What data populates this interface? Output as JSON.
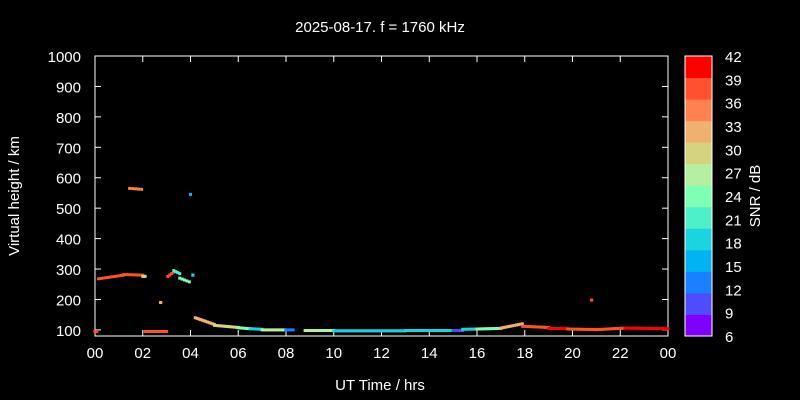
{
  "chart_data": {
    "type": "scatter",
    "title": "2025-08-17. f = 1760 kHz",
    "xlabel": "UT Time / hrs",
    "ylabel": "Virtual height / km",
    "xlim": [
      0,
      24
    ],
    "ylim": [
      80,
      1000
    ],
    "x_ticks": [
      "00",
      "02",
      "04",
      "06",
      "08",
      "10",
      "12",
      "14",
      "16",
      "18",
      "20",
      "22",
      "00"
    ],
    "y_ticks": [
      "100",
      "200",
      "300",
      "400",
      "500",
      "600",
      "700",
      "800",
      "900",
      "1000"
    ],
    "grid": false,
    "colorbar": {
      "label": "SNR / dB",
      "min": 6,
      "max": 42,
      "ticks": [
        "42",
        "39",
        "36",
        "33",
        "30",
        "27",
        "24",
        "21",
        "18",
        "15",
        "12",
        "9",
        "6"
      ],
      "colors": [
        "#8000ff",
        "#4d4dff",
        "#1a80ff",
        "#00b4f0",
        "#1ad4e0",
        "#4df0c8",
        "#80ffb4",
        "#b4f0a0",
        "#d4d480",
        "#f0b070",
        "#ff8050",
        "#ff5030",
        "#ff0000"
      ]
    },
    "series": [
      {
        "segments": [
          {
            "x0": 0.0,
            "x1": 0.08,
            "y0": 95,
            "y1": 95,
            "snr": 40,
            "step": 0.08
          },
          {
            "x0": 0.15,
            "x1": 1.2,
            "y0": 268,
            "y1": 280,
            "snr": 38,
            "step": 0.1
          },
          {
            "x0": 1.2,
            "x1": 2.0,
            "y0": 282,
            "y1": 280,
            "snr": 40,
            "step": 0.1
          },
          {
            "x0": 2.0,
            "x1": 2.1,
            "y0": 276,
            "y1": 276,
            "snr": 30,
            "step": 0.05
          },
          {
            "x0": 1.45,
            "x1": 1.95,
            "y0": 565,
            "y1": 562,
            "snr": 36,
            "step": 0.12
          },
          {
            "x0": 2.1,
            "x1": 3.0,
            "y0": 95,
            "y1": 95,
            "snr": 40,
            "step": 0.1
          },
          {
            "x0": 2.75,
            "x1": 2.75,
            "y0": 190,
            "y1": 190,
            "snr": 33,
            "step": 0.1
          },
          {
            "x0": 3.05,
            "x1": 3.3,
            "y0": 276,
            "y1": 290,
            "snr": 38,
            "step": 0.1
          },
          {
            "x0": 3.3,
            "x1": 3.55,
            "y0": 295,
            "y1": 285,
            "snr": 22,
            "step": 0.1
          },
          {
            "x0": 3.55,
            "x1": 3.95,
            "y0": 270,
            "y1": 258,
            "snr": 25,
            "step": 0.1
          },
          {
            "x0": 4.1,
            "x1": 4.1,
            "y0": 280,
            "y1": 280,
            "snr": 18,
            "step": 0.1
          },
          {
            "x0": 4.0,
            "x1": 4.0,
            "y0": 545,
            "y1": 545,
            "snr": 15,
            "step": 0.1
          },
          {
            "x0": 4.2,
            "x1": 5.0,
            "y0": 140,
            "y1": 118,
            "snr": 33,
            "step": 0.07
          },
          {
            "x0": 5.0,
            "x1": 6.0,
            "y0": 115,
            "y1": 108,
            "snr": 30,
            "step": 0.08
          },
          {
            "x0": 6.0,
            "x1": 6.5,
            "y0": 107,
            "y1": 104,
            "snr": 24,
            "step": 0.08
          },
          {
            "x0": 6.5,
            "x1": 7.0,
            "y0": 104,
            "y1": 102,
            "snr": 18,
            "step": 0.08
          },
          {
            "x0": 7.0,
            "x1": 8.0,
            "y0": 100,
            "y1": 100,
            "snr": 27,
            "step": 0.08
          },
          {
            "x0": 8.0,
            "x1": 8.3,
            "y0": 100,
            "y1": 100,
            "snr": 12,
            "step": 0.1
          },
          {
            "x0": 8.8,
            "x1": 10.0,
            "y0": 98,
            "y1": 98,
            "snr": 27,
            "step": 0.08
          },
          {
            "x0": 10.0,
            "x1": 13.0,
            "y0": 97,
            "y1": 97,
            "snr": 17,
            "step": 0.08
          },
          {
            "x0": 13.0,
            "x1": 15.0,
            "y0": 98,
            "y1": 98,
            "snr": 17,
            "step": 0.08
          },
          {
            "x0": 15.0,
            "x1": 15.4,
            "y0": 98,
            "y1": 98,
            "snr": 10,
            "step": 0.1
          },
          {
            "x0": 15.4,
            "x1": 16.0,
            "y0": 102,
            "y1": 103,
            "snr": 17,
            "step": 0.08
          },
          {
            "x0": 16.0,
            "x1": 17.0,
            "y0": 103,
            "y1": 105,
            "snr": 24,
            "step": 0.08
          },
          {
            "x0": 17.0,
            "x1": 17.9,
            "y0": 106,
            "y1": 120,
            "snr": 32,
            "step": 0.08
          },
          {
            "x0": 17.9,
            "x1": 19.0,
            "y0": 112,
            "y1": 108,
            "snr": 40,
            "step": 0.08
          },
          {
            "x0": 19.0,
            "x1": 19.8,
            "y0": 105,
            "y1": 104,
            "snr": 41,
            "step": 0.08
          },
          {
            "x0": 19.8,
            "x1": 21.0,
            "y0": 103,
            "y1": 101,
            "snr": 40,
            "step": 0.08
          },
          {
            "x0": 20.8,
            "x1": 20.8,
            "y0": 198,
            "y1": 198,
            "snr": 40,
            "step": 0.1
          },
          {
            "x0": 21.0,
            "x1": 22.2,
            "y0": 101,
            "y1": 106,
            "snr": 40,
            "step": 0.08
          },
          {
            "x0": 22.2,
            "x1": 24.0,
            "y0": 106,
            "y1": 104,
            "snr": 41,
            "step": 0.08
          }
        ]
      }
    ]
  }
}
